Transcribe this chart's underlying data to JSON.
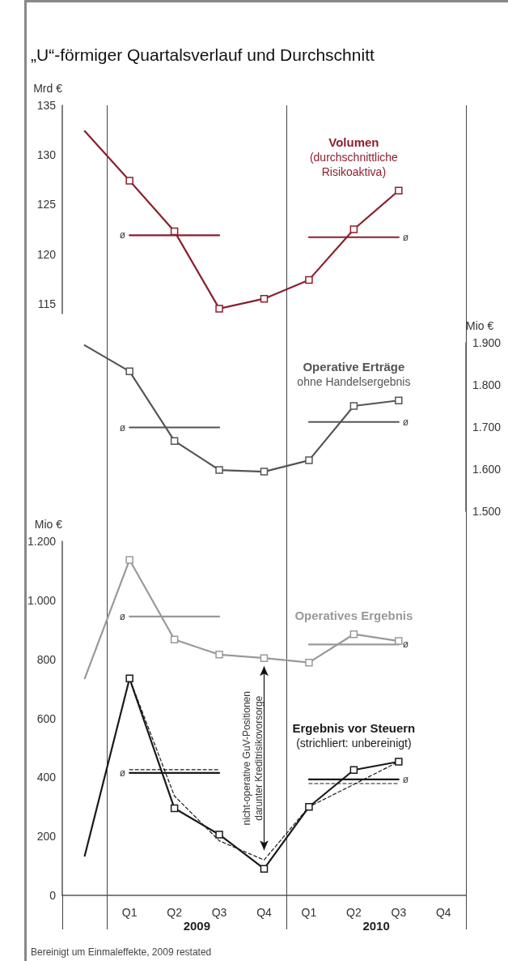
{
  "chart_data": [
    {
      "type": "line",
      "title": "„U“-förmiger Quartalsverlauf und Durchschnitt",
      "categories": [
        null,
        null,
        null,
        null,
        null,
        null,
        null,
        null,
        null
      ],
      "ylabel": "Mrd €",
      "ylim": [
        114,
        135
      ],
      "yticks": [
        115,
        120,
        125,
        130,
        135
      ],
      "tick_labels": "y",
      "marker": "square",
      "line_style": "solid",
      "series": [
        {
          "name": "Volumen\n(durchschnittliche\nRisikoaktiva)",
          "color": "#8b1f2e",
          "values": [
            132.4,
            127.4,
            122.3,
            114.5,
            115.5,
            117.4,
            122.5,
            126.4,
            null
          ]
        },
        {
          "name": "ø",
          "color": "#8b1f2e",
          "marker": "none",
          "values": [
            null,
            121.9,
            121.9,
            121.9,
            null,
            null,
            null,
            null,
            null
          ]
        },
        {
          "name": "ø",
          "color": "#8b1f2e",
          "marker": "none",
          "values": [
            null,
            null,
            null,
            null,
            null,
            121.7,
            121.7,
            121.7,
            null
          ]
        }
      ]
    },
    {
      "type": "line",
      "categories": [
        null,
        null,
        null,
        null,
        null,
        null,
        null,
        null,
        null
      ],
      "ylabel": "Mio €",
      "ylim": [
        1500,
        1900
      ],
      "yticks": [
        {
          "value": 1500,
          "label": "1.500"
        },
        {
          "value": 1600,
          "label": "1.600"
        },
        {
          "value": 1700,
          "label": "1.700"
        },
        {
          "value": 1800,
          "label": "1.800"
        },
        {
          "value": 1900,
          "label": "1.900"
        }
      ],
      "tick_labels": "y",
      "marker": "square",
      "line_style": "solid",
      "series": [
        {
          "name": "Operative Erträge\nohne Handelsergebnis",
          "color": "#555555",
          "values": [
            1894,
            1832,
            1667,
            1598,
            1594,
            1621,
            1750,
            1763,
            null
          ]
        },
        {
          "name": "ø",
          "color": "#555555",
          "marker": "none",
          "values": [
            null,
            1699,
            1699,
            1699,
            null,
            null,
            null,
            null,
            null
          ]
        },
        {
          "name": "ø",
          "color": "#555555",
          "marker": "none",
          "values": [
            null,
            null,
            null,
            null,
            null,
            1712,
            1712,
            1712,
            null
          ]
        }
      ]
    },
    {
      "type": "line",
      "categories": [
        null,
        "Q1",
        "Q2",
        "Q3",
        "Q4",
        "Q1",
        "Q2",
        "Q3",
        "Q4"
      ],
      "ylabel": "Mio €",
      "ylim": [
        0,
        1200
      ],
      "yticks": [
        0,
        200,
        400,
        600,
        800,
        {
          "value": 1000,
          "label": "1.000"
        },
        {
          "value": 1200,
          "label": "1.200"
        }
      ],
      "marker": "square",
      "line_style": "solid",
      "series": [
        {
          "name": "Operatives Ergebnis",
          "color": "#999999",
          "values": [
            735,
            1137,
            867,
            816,
            804,
            789,
            885,
            862,
            null
          ]
        },
        {
          "name": "ø",
          "color": "#999999",
          "marker": "none",
          "values": [
            null,
            945,
            945,
            945,
            null,
            null,
            null,
            null,
            null
          ]
        },
        {
          "name": "ø",
          "color": "#999999",
          "marker": "none",
          "values": [
            null,
            null,
            null,
            null,
            null,
            850,
            850,
            850,
            null
          ]
        },
        {
          "name": "Ergebnis vor Steuern\n(strichliert: unbereinigt)",
          "color": "#1a1a1a",
          "values": [
            134,
            735,
            295,
            206,
            90,
            300,
            425,
            453,
            null
          ]
        },
        {
          "name": "ø",
          "color": "#1a1a1a",
          "marker": "none",
          "values": [
            null,
            415,
            415,
            415,
            null,
            null,
            null,
            null,
            null
          ]
        },
        {
          "name": "ø",
          "color": "#1a1a1a",
          "marker": "none",
          "values": [
            null,
            null,
            null,
            null,
            null,
            393,
            393,
            393,
            null
          ]
        },
        {
          "color": "#1a1a1a",
          "marker": "none",
          "line_style": "dashed",
          "values": [
            null,
            735,
            337,
            185,
            120,
            300,
            376,
            453,
            null
          ]
        },
        {
          "color": "#1a1a1a",
          "marker": "none",
          "line_style": "dashed",
          "values": [
            null,
            426,
            426,
            426,
            null,
            null,
            null,
            null,
            null
          ]
        },
        {
          "color": "#1a1a1a",
          "marker": "none",
          "line_style": "dashed",
          "values": [
            null,
            null,
            null,
            null,
            null,
            379,
            379,
            379,
            null
          ]
        }
      ],
      "annotations": [
        "2009",
        "2010",
        "nicht-operative GuV-Positionen\ndarunter Kreditrisikovorsorge",
        "Bereinigt um Einmaleffekte, 2009 restated"
      ]
    }
  ]
}
